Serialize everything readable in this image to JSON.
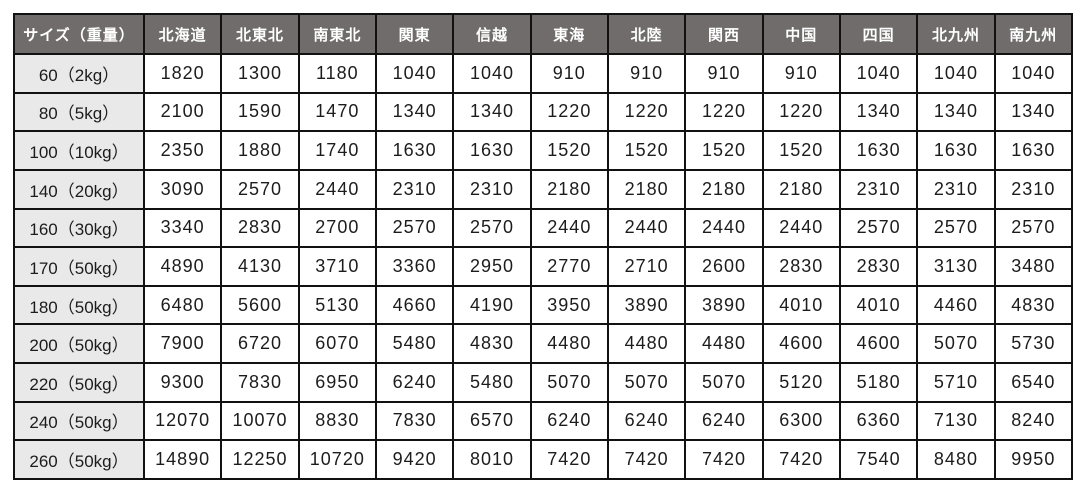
{
  "chart_data": {
    "type": "table",
    "description": "Shipping rate table by parcel size/weight and destination region (JPY)",
    "columns": [
      "サイズ（重量）",
      "北海道",
      "北東北",
      "南東北",
      "関東",
      "信越",
      "東海",
      "北陸",
      "関西",
      "中国",
      "四国",
      "北九州",
      "南九州"
    ],
    "rows": [
      {
        "size": "60（2kg）",
        "values": [
          1820,
          1300,
          1180,
          1040,
          1040,
          910,
          910,
          910,
          910,
          1040,
          1040,
          1040
        ]
      },
      {
        "size": "80（5kg）",
        "values": [
          2100,
          1590,
          1470,
          1340,
          1340,
          1220,
          1220,
          1220,
          1220,
          1340,
          1340,
          1340
        ]
      },
      {
        "size": "100（10kg）",
        "values": [
          2350,
          1880,
          1740,
          1630,
          1630,
          1520,
          1520,
          1520,
          1520,
          1630,
          1630,
          1630
        ]
      },
      {
        "size": "140（20kg）",
        "values": [
          3090,
          2570,
          2440,
          2310,
          2310,
          2180,
          2180,
          2180,
          2180,
          2310,
          2310,
          2310
        ]
      },
      {
        "size": "160（30kg）",
        "values": [
          3340,
          2830,
          2700,
          2570,
          2570,
          2440,
          2440,
          2440,
          2440,
          2570,
          2570,
          2570
        ]
      },
      {
        "size": "170（50kg）",
        "values": [
          4890,
          4130,
          3710,
          3360,
          2950,
          2770,
          2710,
          2600,
          2830,
          2830,
          3130,
          3480
        ]
      },
      {
        "size": "180（50kg）",
        "values": [
          6480,
          5600,
          5130,
          4660,
          4190,
          3950,
          3890,
          3890,
          4010,
          4010,
          4460,
          4830
        ]
      },
      {
        "size": "200（50kg）",
        "values": [
          7900,
          6720,
          6070,
          5480,
          4830,
          4480,
          4480,
          4480,
          4600,
          4600,
          5070,
          5730
        ]
      },
      {
        "size": "220（50kg）",
        "values": [
          9300,
          7830,
          6950,
          6240,
          5480,
          5070,
          5070,
          5070,
          5120,
          5180,
          5710,
          6540
        ]
      },
      {
        "size": "240（50kg）",
        "values": [
          12070,
          10070,
          8830,
          7830,
          6570,
          6240,
          6240,
          6240,
          6300,
          6360,
          7130,
          8240
        ]
      },
      {
        "size": "260（50kg）",
        "values": [
          14890,
          12250,
          10720,
          9420,
          8010,
          7420,
          7420,
          7420,
          7420,
          7540,
          8480,
          9950
        ]
      }
    ],
    "layout": {
      "grid": "on",
      "legend": "none"
    },
    "colors": {
      "header_bg": "#706c6c",
      "header_text": "#ffffff",
      "row_label_bg": "#e9e9e9",
      "cell_bg": "#ffffff",
      "border": "#111111",
      "text": "#1c1c1c"
    }
  }
}
